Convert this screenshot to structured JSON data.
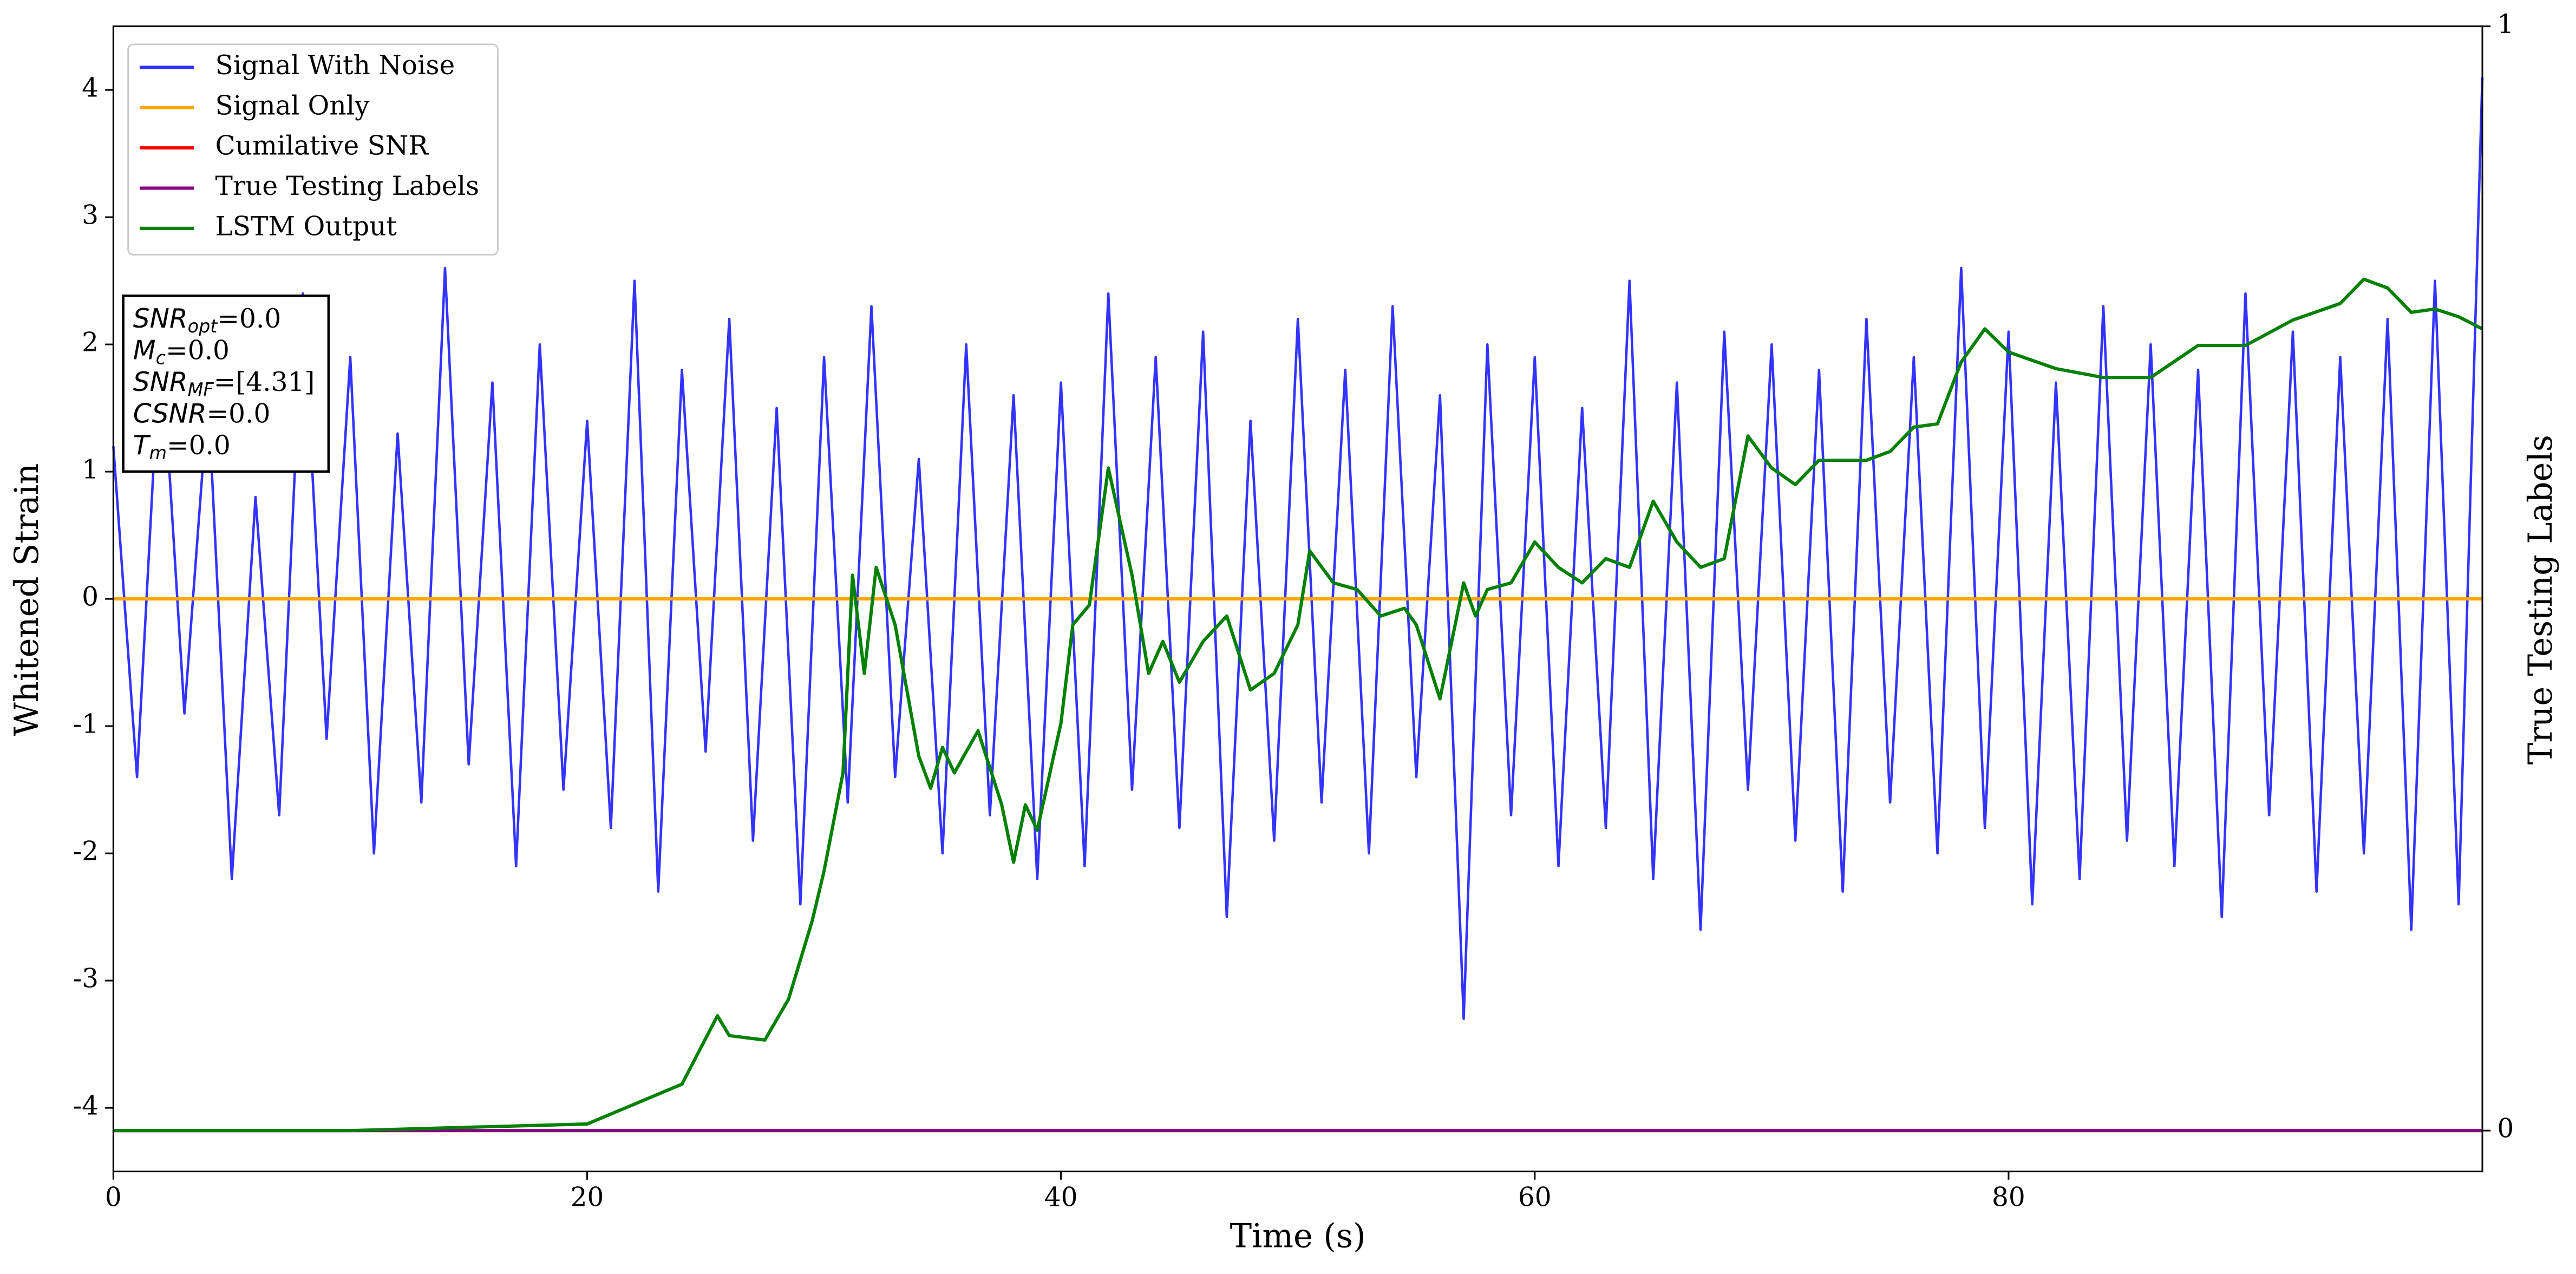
{
  "chart_data": {
    "type": "line",
    "xlabel": "Time (s)",
    "ylabel": "Whitened Strain",
    "y2label": "True Testing Labels",
    "xlim": [
      0,
      100
    ],
    "xticks": [
      0,
      20,
      40,
      60,
      80
    ],
    "ylim": [
      -4.5,
      4.5
    ],
    "yticks": [
      -4,
      -3,
      -2,
      -1,
      0,
      1,
      2,
      3,
      4
    ],
    "y2lim": [
      -0.037,
      1
    ],
    "y2ticks": [
      0,
      1
    ],
    "legend": "upper left",
    "annotations": [
      {
        "symbol": "SNR",
        "subscript": "opt",
        "text": "=0.0"
      },
      {
        "symbol": "M",
        "subscript": "c",
        "text": "=0.0"
      },
      {
        "symbol": "SNR",
        "subscript": "MF",
        "text": "=[4.31]"
      },
      {
        "symbol": "CSNR",
        "subscript": "",
        "text": "=0.0"
      },
      {
        "symbol": "T",
        "subscript": "m",
        "text": "=0.0"
      }
    ],
    "series": [
      {
        "name": "Signal With Noise",
        "color": "#3333ff",
        "axis": "y",
        "x": [
          0,
          1,
          2,
          3,
          4,
          5,
          6,
          7,
          8,
          9,
          10,
          11,
          12,
          13,
          14,
          15,
          16,
          17,
          18,
          19,
          20,
          21,
          22,
          23,
          24,
          25,
          26,
          27,
          28,
          29,
          30,
          31,
          32,
          33,
          34,
          35,
          36,
          37,
          38,
          39,
          40,
          41,
          42,
          43,
          44,
          45,
          46,
          47,
          48,
          49,
          50,
          51,
          52,
          53,
          54,
          55,
          56,
          57,
          58,
          59,
          60,
          61,
          62,
          63,
          64,
          65,
          66,
          67,
          68,
          69,
          70,
          71,
          72,
          73,
          74,
          75,
          76,
          77,
          78,
          79,
          80,
          81,
          82,
          83,
          84,
          85,
          86,
          87,
          88,
          89,
          90,
          91,
          92,
          93,
          94,
          95,
          96,
          97,
          98,
          99,
          100
        ],
        "values": [
          1.2,
          -1.4,
          2.1,
          -0.9,
          1.6,
          -2.2,
          0.8,
          -1.7,
          2.4,
          -1.1,
          1.9,
          -2.0,
          1.3,
          -1.6,
          2.6,
          -1.3,
          1.7,
          -2.1,
          2.0,
          -1.5,
          1.4,
          -1.8,
          2.5,
          -2.3,
          1.8,
          -1.2,
          2.2,
          -1.9,
          1.5,
          -2.4,
          1.9,
          -1.6,
          2.3,
          -1.4,
          1.1,
          -2.0,
          2.0,
          -1.7,
          1.6,
          -2.2,
          1.7,
          -2.1,
          2.4,
          -1.5,
          1.9,
          -1.8,
          2.1,
          -2.5,
          1.4,
          -1.9,
          2.2,
          -1.6,
          1.8,
          -2.0,
          2.3,
          -1.4,
          1.6,
          -3.3,
          2.0,
          -1.7,
          1.9,
          -2.1,
          1.5,
          -1.8,
          2.5,
          -2.2,
          1.7,
          -2.6,
          2.1,
          -1.5,
          2.0,
          -1.9,
          1.8,
          -2.3,
          2.2,
          -1.6,
          1.9,
          -2.0,
          2.6,
          -1.8,
          2.1,
          -2.4,
          1.7,
          -2.2,
          2.3,
          -1.9,
          2.0,
          -2.1,
          1.8,
          -2.5,
          2.4,
          -1.7,
          2.1,
          -2.3,
          1.9,
          -2.0,
          2.2,
          -2.6,
          2.5,
          -2.4,
          4.1
        ]
      },
      {
        "name": "Signal Only",
        "color": "#ffa500",
        "axis": "y",
        "x": [
          0,
          100
        ],
        "values": [
          0,
          0
        ]
      },
      {
        "name": "Cumilative SNR",
        "color": "#ff0000",
        "axis": "y2",
        "x": [
          0,
          100
        ],
        "values": [
          0,
          0
        ]
      },
      {
        "name": "True Testing Labels",
        "color": "#800080",
        "axis": "y2",
        "x": [
          0,
          100
        ],
        "values": [
          0,
          0
        ]
      },
      {
        "name": "LSTM Output",
        "color": "#008000",
        "axis": "y2",
        "x": [
          0,
          10,
          20,
          22,
          24,
          25.5,
          26,
          27.5,
          28.5,
          29.5,
          30,
          30.8,
          31.2,
          31.7,
          32.2,
          33,
          34,
          34.5,
          35,
          35.5,
          36.5,
          37.5,
          38,
          38.5,
          39,
          40,
          40.5,
          41.2,
          42,
          43,
          43.7,
          44.3,
          45,
          46,
          47,
          48,
          49,
          50,
          50.5,
          51.5,
          52.5,
          53.5,
          54.5,
          55,
          56,
          57,
          57.5,
          58,
          59,
          60,
          61,
          62,
          63,
          64,
          65,
          66,
          67,
          68,
          69,
          70,
          71,
          72,
          74,
          75,
          76,
          77,
          78,
          79,
          80,
          82,
          84,
          86,
          88,
          90,
          92,
          94,
          95,
          96,
          97,
          98,
          99,
          100
        ],
        "values": [
          0,
          0,
          0.006,
          0.024,
          0.042,
          0.104,
          0.086,
          0.082,
          0.119,
          0.19,
          0.235,
          0.324,
          0.503,
          0.414,
          0.51,
          0.458,
          0.339,
          0.31,
          0.347,
          0.324,
          0.362,
          0.295,
          0.243,
          0.295,
          0.272,
          0.369,
          0.458,
          0.476,
          0.6,
          0.503,
          0.414,
          0.443,
          0.406,
          0.443,
          0.466,
          0.399,
          0.414,
          0.458,
          0.525,
          0.496,
          0.49,
          0.466,
          0.473,
          0.458,
          0.391,
          0.496,
          0.466,
          0.49,
          0.496,
          0.533,
          0.51,
          0.496,
          0.518,
          0.51,
          0.57,
          0.533,
          0.51,
          0.518,
          0.629,
          0.6,
          0.585,
          0.607,
          0.607,
          0.615,
          0.637,
          0.64,
          0.696,
          0.726,
          0.705,
          0.69,
          0.682,
          0.682,
          0.711,
          0.711,
          0.734,
          0.749,
          0.771,
          0.763,
          0.741,
          0.744,
          0.737,
          0.726
        ]
      }
    ]
  }
}
